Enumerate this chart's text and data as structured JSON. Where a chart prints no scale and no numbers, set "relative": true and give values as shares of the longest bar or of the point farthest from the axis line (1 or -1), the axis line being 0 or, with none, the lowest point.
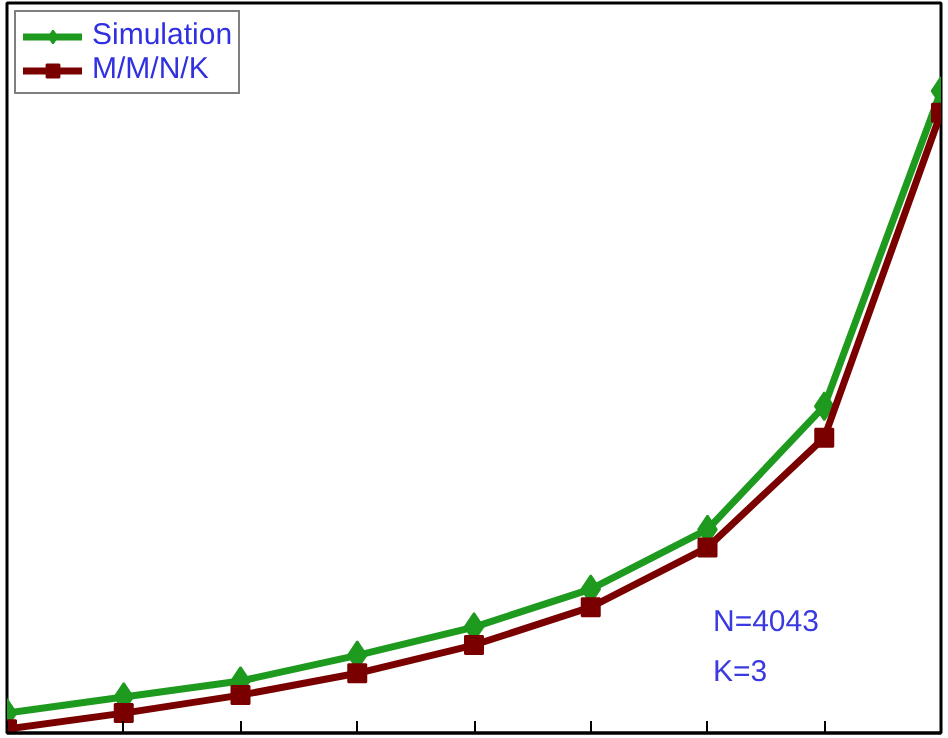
{
  "chart_data": {
    "type": "line",
    "relative": true,
    "categories": [
      null,
      null,
      null,
      null,
      null,
      null,
      null,
      null,
      null
    ],
    "series": [
      {
        "name": "Simulation",
        "color": "#1e9a1e",
        "marker": "diamond",
        "values": [
          0.031,
          0.056,
          0.081,
          0.121,
          0.165,
          0.224,
          0.317,
          0.509,
          1
        ]
      },
      {
        "name": "M/M/N/K",
        "color": "#7a0000",
        "marker": "square",
        "values": [
          0.006,
          0.031,
          0.059,
          0.093,
          0.137,
          0.196,
          0.289,
          0.46,
          0.966
        ]
      }
    ],
    "annotations": [
      "N=4043",
      "K=3"
    ],
    "legend": "top left",
    "grid": false,
    "line_style": "solid"
  }
}
